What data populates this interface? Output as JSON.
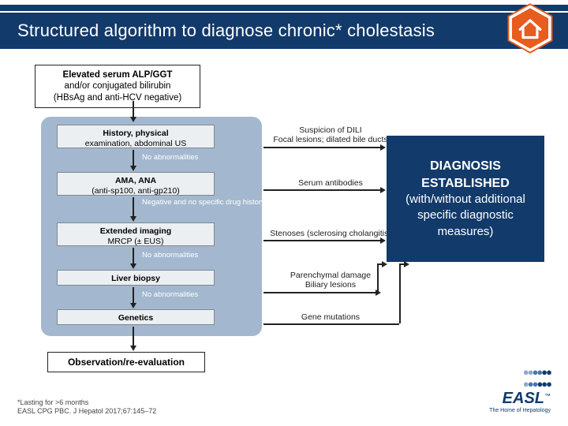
{
  "title": "Structured algorithm to diagnose chronic* cholestasis",
  "colors": {
    "brand": "#123a6b",
    "accent": "#e85c1e",
    "panel": "#a3b8cf",
    "step": "#eceff2"
  },
  "start": {
    "line1": "Elevated serum ALP/GGT",
    "line2": "and/or conjugated bilirubin",
    "line3": "(HBsAg and anti-HCV negative)"
  },
  "steps": [
    {
      "bold": "History, physical",
      "plain": "examination, abdominal US"
    },
    {
      "bold": "AMA, ANA",
      "plain": "(anti-sp100, anti-gp210)"
    },
    {
      "bold": "Extended imaging",
      "plain": "MRCP (± EUS)"
    },
    {
      "bold": "Liver biopsy",
      "plain": ""
    },
    {
      "bold": "Genetics",
      "plain": ""
    }
  ],
  "between": [
    "No abnormalities",
    "Negative and no specific drug history",
    "No abnormalities",
    "No abnormalities"
  ],
  "right": [
    "Suspicion of DILI\nFocal lesions; dilated bile ducts",
    "Serum antibodies",
    "Stenoses (sclerosing cholangitis)",
    "Parenchymal damage\nBiliary lesions",
    "Gene mutations"
  ],
  "observation": "Observation/re-evaluation",
  "diagnosis": {
    "head": "DIAGNOSIS ESTABLISHED",
    "sub": "(with/without additional specific diagnostic measures)"
  },
  "footnote": {
    "l1": "*Lasting for >6 months",
    "l2": "EASL CPG PBC. J Hepatol 2017;67:145–72"
  },
  "logo": {
    "name": "EASL",
    "tag": "The Home of Hepatology"
  }
}
